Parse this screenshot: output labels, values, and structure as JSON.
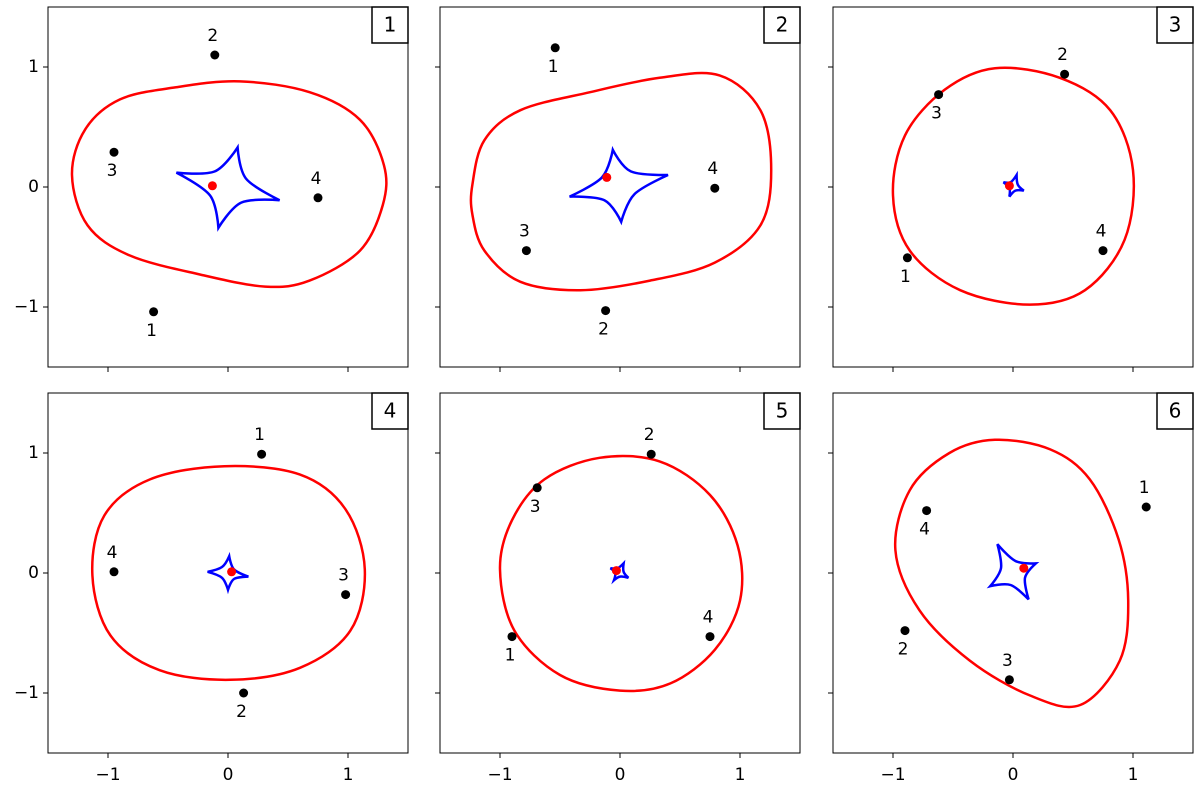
{
  "chart_data": [
    {
      "type": "lens",
      "label": "1",
      "xlim": [
        -1.5,
        1.5
      ],
      "ylim": [
        -1.5,
        1.5
      ],
      "xticks": [
        {
          "value": -1,
          "label": "−1"
        },
        0,
        1
      ],
      "yticks": [
        {
          "value": -1,
          "label": "−1"
        },
        0,
        1
      ],
      "images": {
        "x": [
          -0.62,
          -0.11,
          -0.95,
          0.75
        ],
        "y": [
          -1.04,
          1.1,
          0.29,
          -0.09
        ],
        "labels": [
          "1",
          "2",
          "3",
          "4"
        ],
        "color": "#000000"
      },
      "source": {
        "x": -0.13,
        "y": 0.01,
        "color": "#ff0000"
      },
      "critical_curve": {
        "color": "#ff0000",
        "x": [
          -1.3,
          -1.19,
          -0.9,
          -0.44,
          0.1,
          0.68,
          1.1,
          1.3,
          1.29,
          1.1,
          0.68,
          0.31,
          -0.23,
          -0.82,
          -1.17
        ],
        "y": [
          0.1,
          0.48,
          0.73,
          0.83,
          0.88,
          0.79,
          0.56,
          0.18,
          -0.15,
          -0.53,
          -0.78,
          -0.83,
          -0.73,
          -0.57,
          -0.32
        ]
      },
      "caustic": {
        "color": "#0000ff",
        "x": [
          0.08,
          0.15,
          0.43,
          0.11,
          -0.08,
          -0.15,
          -0.43,
          -0.11
        ],
        "y": [
          0.33,
          0.07,
          -0.11,
          -0.13,
          -0.34,
          -0.07,
          0.12,
          0.13
        ]
      }
    },
    {
      "type": "lens",
      "label": "2",
      "xlim": [
        -1.5,
        1.5
      ],
      "ylim": [
        -1.5,
        1.5
      ],
      "xticks": [
        {
          "value": -1,
          "label": "−1"
        },
        0,
        1
      ],
      "yticks": [
        {
          "value": -1,
          "label": "−1"
        },
        0,
        1
      ],
      "images": {
        "x": [
          -0.54,
          -0.12,
          -0.78,
          0.79
        ],
        "y": [
          1.16,
          -1.03,
          -0.53,
          -0.01
        ],
        "labels": [
          "1",
          "2",
          "3",
          "4"
        ],
        "color": "#000000"
      },
      "source": {
        "x": -0.11,
        "y": 0.08,
        "color": "#ff0000"
      },
      "critical_curve": {
        "color": "#ff0000",
        "x": [
          -1.23,
          -1.13,
          -0.83,
          -0.25,
          0.33,
          0.83,
          1.17,
          1.26,
          1.17,
          0.79,
          0.25,
          -0.33,
          -0.83,
          -1.13,
          -1.23
        ],
        "y": [
          0.02,
          0.39,
          0.64,
          0.79,
          0.91,
          0.93,
          0.64,
          0.14,
          -0.32,
          -0.63,
          -0.78,
          -0.86,
          -0.79,
          -0.53,
          -0.23
        ]
      },
      "caustic": {
        "color": "#0000ff",
        "x": [
          -0.06,
          0.09,
          0.4,
          0.12,
          0.01,
          -0.13,
          -0.42,
          -0.15
        ],
        "y": [
          0.31,
          0.13,
          0.1,
          -0.06,
          -0.29,
          -0.11,
          -0.08,
          0.08
        ]
      }
    },
    {
      "type": "lens",
      "label": "3",
      "xlim": [
        -1.5,
        1.5
      ],
      "ylim": [
        -1.5,
        1.5
      ],
      "xticks": [
        {
          "value": -1,
          "label": "−1"
        },
        0,
        1
      ],
      "yticks": [
        {
          "value": -1,
          "label": "−1"
        },
        0,
        1
      ],
      "images": {
        "x": [
          -0.88,
          0.43,
          -0.62,
          0.75
        ],
        "y": [
          -0.59,
          0.94,
          0.77,
          -0.53
        ],
        "labels": [
          "1",
          "2",
          "3",
          "4"
        ],
        "color": "#000000"
      },
      "source": {
        "x": -0.03,
        "y": 0.01,
        "color": "#ff0000"
      },
      "critical_curve": {
        "color": "#ff0000",
        "x": [
          -0.15,
          0.39,
          0.81,
          1.0,
          0.93,
          0.6,
          0.14,
          -0.44,
          -0.86,
          -1.0,
          -0.9,
          -0.57
        ],
        "y": [
          0.99,
          0.91,
          0.64,
          0.14,
          -0.44,
          -0.86,
          -0.98,
          -0.86,
          -0.53,
          -0.07,
          0.43,
          0.81
        ]
      },
      "caustic": {
        "color": "#0000ff",
        "x": [
          0.03,
          0.04,
          0.09,
          0.02,
          -0.03,
          -0.03,
          -0.08,
          -0.02
        ],
        "y": [
          0.1,
          0.02,
          -0.03,
          -0.03,
          -0.08,
          -0.01,
          0.04,
          0.04
        ]
      }
    },
    {
      "type": "lens",
      "label": "4",
      "xlim": [
        -1.5,
        1.5
      ],
      "ylim": [
        -1.5,
        1.5
      ],
      "xticks": [
        {
          "value": -1,
          "label": "−1"
        },
        0,
        1
      ],
      "yticks": [
        {
          "value": -1,
          "label": "−1"
        },
        0,
        1
      ],
      "images": {
        "x": [
          0.28,
          0.13,
          0.98,
          -0.95
        ],
        "y": [
          0.99,
          -1.0,
          -0.18,
          0.01
        ],
        "labels": [
          "1",
          "2",
          "3",
          "4"
        ],
        "color": "#000000"
      },
      "source": {
        "x": 0.03,
        "y": 0.01,
        "color": "#ff0000"
      },
      "critical_curve": {
        "color": "#ff0000",
        "x": [
          -1.13,
          -1.03,
          -0.65,
          -0.03,
          0.6,
          0.98,
          1.14,
          1.02,
          0.6,
          0.02,
          -0.57,
          -0.98
        ],
        "y": [
          -0.02,
          0.48,
          0.78,
          0.89,
          0.82,
          0.53,
          0.03,
          -0.48,
          -0.79,
          -0.89,
          -0.81,
          -0.52
        ]
      },
      "caustic": {
        "color": "#0000ff",
        "x": [
          0.01,
          0.05,
          0.17,
          0.05,
          0.0,
          -0.05,
          -0.17,
          -0.05
        ],
        "y": [
          0.14,
          0.03,
          -0.03,
          -0.05,
          -0.14,
          -0.04,
          0.01,
          0.05
        ]
      }
    },
    {
      "type": "lens",
      "label": "5",
      "xlim": [
        -1.5,
        1.5
      ],
      "ylim": [
        -1.5,
        1.5
      ],
      "xticks": [
        {
          "value": -1,
          "label": "−1"
        },
        0,
        1
      ],
      "yticks": [
        {
          "value": -1,
          "label": "−1"
        },
        0,
        1
      ],
      "images": {
        "x": [
          -0.9,
          0.26,
          -0.69,
          0.75
        ],
        "y": [
          -0.53,
          0.99,
          0.71,
          -0.53
        ],
        "labels": [
          "1",
          "2",
          "3",
          "4"
        ],
        "color": "#000000"
      },
      "source": {
        "x": -0.03,
        "y": 0.02,
        "color": "#ff0000"
      },
      "critical_curve": {
        "color": "#ff0000",
        "x": [
          -0.17,
          0.33,
          0.75,
          0.98,
          1.0,
          0.79,
          0.42,
          0.0,
          -0.5,
          -0.88,
          -1.0,
          -0.9,
          -0.63
        ],
        "y": [
          0.96,
          0.93,
          0.65,
          0.23,
          -0.23,
          -0.64,
          -0.92,
          -0.98,
          -0.85,
          -0.48,
          0.03,
          0.44,
          0.78
        ]
      },
      "caustic": {
        "color": "#0000ff",
        "x": [
          0.03,
          0.03,
          0.07,
          0.0,
          -0.05,
          -0.04,
          -0.08,
          -0.02
        ],
        "y": [
          0.08,
          0.01,
          -0.04,
          -0.03,
          -0.06,
          0.0,
          0.04,
          0.04
        ]
      }
    },
    {
      "type": "lens",
      "label": "6",
      "xlim": [
        -1.5,
        1.5
      ],
      "ylim": [
        -1.5,
        1.5
      ],
      "xticks": [
        {
          "value": -1,
          "label": "−1"
        },
        0,
        1
      ],
      "yticks": [
        {
          "value": -1,
          "label": "−1"
        },
        0,
        1
      ],
      "images": {
        "x": [
          1.11,
          -0.9,
          -0.03,
          -0.72
        ],
        "y": [
          0.55,
          -0.48,
          -0.89,
          0.52
        ],
        "labels": [
          "1",
          "2",
          "3",
          "4"
        ],
        "color": "#000000"
      },
      "source": {
        "x": 0.09,
        "y": 0.04,
        "color": "#ff0000"
      },
      "critical_curve": {
        "color": "#ff0000",
        "x": [
          -0.15,
          0.31,
          0.64,
          0.88,
          0.96,
          0.89,
          0.56,
          0.14,
          -0.36,
          -0.78,
          -0.98,
          -0.86,
          -0.53
        ],
        "y": [
          1.11,
          1.03,
          0.78,
          0.28,
          -0.23,
          -0.73,
          -1.1,
          -1.02,
          -0.73,
          -0.31,
          0.19,
          0.69,
          1.0
        ]
      },
      "caustic": {
        "color": "#0000ff",
        "x": [
          -0.13,
          0.02,
          0.19,
          0.1,
          0.13,
          -0.02,
          -0.19,
          -0.1
        ],
        "y": [
          0.24,
          0.1,
          0.08,
          -0.04,
          -0.22,
          -0.1,
          -0.11,
          0.04
        ]
      }
    }
  ]
}
